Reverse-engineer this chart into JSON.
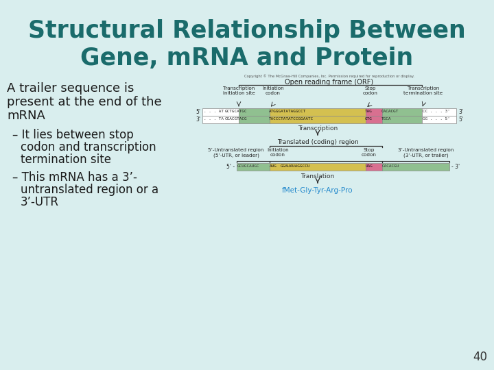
{
  "title_line1": "Structural Relationship Between",
  "title_line2": "Gene, mRNA and Protein",
  "title_color": "#1a6b6b",
  "bg_color": "#d9eeee",
  "body_text_color": "#1a1a1a",
  "page_number": "40",
  "copyright": "Copyright © The McGraw-Hill Companies, Inc. Permission required for reproduction or display.",
  "orf_label": "Open reading frame (ORF)",
  "transcription_label": "Transcription",
  "translated_label": "Translated (coding) region",
  "translation_label": "Translation",
  "protein_label": "fMet-Gly-Tyr-Arg-Pro",
  "protein_color": "#2288cc",
  "col_label1": "Transcription\ninitiation site",
  "col_label2": "Initiation\ncodon",
  "col_label3": "Stop\ncodon",
  "col_label4": "Transcription\ntermination site",
  "mrna_label1": "5’-Untranslated region\n(5’-UTR, or leader)",
  "mrna_label2": "Initiation\ncodon",
  "mrna_label3": "Stop\ncodon",
  "mrna_label4": "3’-Untranslated region\n(3’-UTR, or trailer)",
  "color_green": "#90c090",
  "color_yellow": "#d4c050",
  "color_pink": "#d87090",
  "color_white": "#ffffff",
  "seq_top": "GCTGCATGCATGGGATATAGGCCTTAGCACACGTCC",
  "seq_bot": "CGACGTACGTACCCTATATCCGGAATCGTGTGCAGG"
}
